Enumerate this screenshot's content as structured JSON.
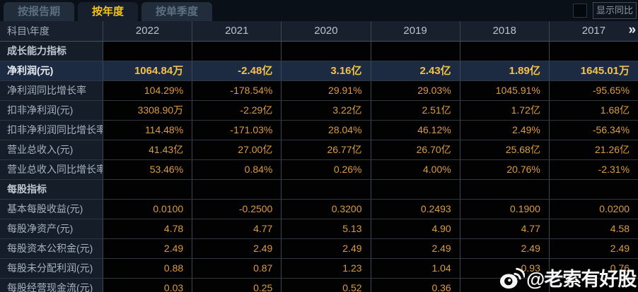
{
  "tabs": {
    "items": [
      {
        "label": "按报告期",
        "active": false
      },
      {
        "label": "按年度",
        "active": true
      },
      {
        "label": "按单季度",
        "active": false
      }
    ]
  },
  "controls": {
    "show_yoy_label": "显示同比",
    "checkbox_checked": false
  },
  "table": {
    "corner_label": "科目\\年度",
    "years": [
      "2022",
      "2021",
      "2020",
      "2019",
      "2018",
      "2017"
    ],
    "more_years_icon": "»",
    "rows": [
      {
        "type": "section",
        "label": "成长能力指标",
        "values": [
          "",
          "",
          "",
          "",
          "",
          ""
        ]
      },
      {
        "type": "highlight",
        "label": "净利润(元)",
        "values": [
          "1064.84万",
          "-2.48亿",
          "3.16亿",
          "2.43亿",
          "1.89亿",
          "1645.01万"
        ]
      },
      {
        "type": "data",
        "label": "净利润同比增长率",
        "values": [
          "104.29%",
          "-178.54%",
          "29.91%",
          "29.03%",
          "1045.91%",
          "-95.65%"
        ]
      },
      {
        "type": "data",
        "label": "扣非净利润(元)",
        "values": [
          "3308.90万",
          "-2.29亿",
          "3.22亿",
          "2.51亿",
          "1.72亿",
          "1.68亿"
        ]
      },
      {
        "type": "data",
        "label": "扣非净利润同比增长率",
        "values": [
          "114.48%",
          "-171.03%",
          "28.04%",
          "46.12%",
          "2.49%",
          "-56.34%"
        ]
      },
      {
        "type": "data",
        "label": "营业总收入(元)",
        "values": [
          "41.43亿",
          "27.00亿",
          "26.77亿",
          "26.70亿",
          "25.68亿",
          "21.26亿"
        ]
      },
      {
        "type": "data",
        "label": "营业总收入同比增长率",
        "values": [
          "53.46%",
          "0.84%",
          "0.26%",
          "4.00%",
          "20.76%",
          "-2.31%"
        ]
      },
      {
        "type": "section",
        "label": "每股指标",
        "values": [
          "",
          "",
          "",
          "",
          "",
          ""
        ]
      },
      {
        "type": "data",
        "label": "基本每股收益(元)",
        "values": [
          "0.0100",
          "-0.2500",
          "0.3200",
          "0.2493",
          "0.1900",
          "0.0200"
        ]
      },
      {
        "type": "data",
        "label": "每股净资产(元)",
        "values": [
          "4.78",
          "4.77",
          "5.13",
          "4.90",
          "4.77",
          "4.58"
        ]
      },
      {
        "type": "data",
        "label": "每股资本公积金(元)",
        "values": [
          "2.49",
          "2.49",
          "2.49",
          "2.49",
          "2.49",
          "2.49"
        ]
      },
      {
        "type": "data",
        "label": "每股未分配利润(元)",
        "values": [
          "0.88",
          "0.87",
          "1.23",
          "1.04",
          "0.93",
          "0.76"
        ]
      },
      {
        "type": "data",
        "label": "每股经营现金流(元)",
        "values": [
          "0.03",
          "0.25",
          "0.52",
          "0.36",
          "",
          ""
        ]
      }
    ]
  },
  "watermark": {
    "text": "@老索有好股",
    "icon": "weibo-icon"
  },
  "colors": {
    "tab_active_text": "#f3c31c",
    "value_orange": "#dc9c42",
    "highlight_value": "#f2c14e",
    "highlight_row_bg": "#1d2b42",
    "grid_line": "#3b4754",
    "header_bg": "#17202c",
    "label_cell_bg": "#141d28"
  }
}
